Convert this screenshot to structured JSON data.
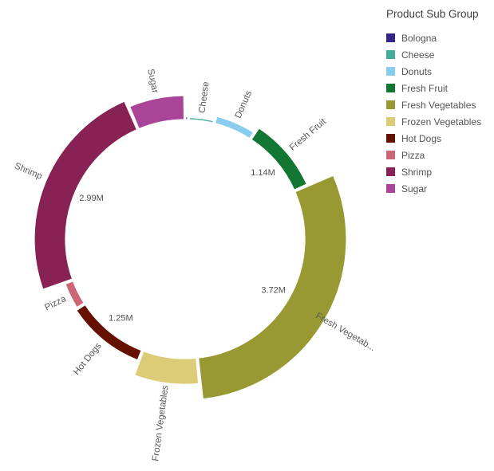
{
  "legend": {
    "title": "Product Sub Group"
  },
  "chart_data": {
    "type": "pie",
    "subtype": "variable-radius-donut",
    "title": "",
    "legend_position": "top-right",
    "unit": "M",
    "slices": [
      {
        "label": "Bologna",
        "color": "#332288",
        "value": 0.05,
        "radius": 0.06,
        "outer_label": null,
        "value_label": null
      },
      {
        "label": "Cheese",
        "color": "#44AA99",
        "value": 0.43,
        "radius": 0.05,
        "outer_label": "Cheese",
        "value_label": null
      },
      {
        "label": "Donuts",
        "color": "#88CCEE",
        "value": 0.66,
        "radius": 0.17,
        "outer_label": "Donuts",
        "value_label": null
      },
      {
        "label": "Fresh Fruit",
        "color": "#117733",
        "value": 1.14,
        "radius": 0.33,
        "outer_label": "Fresh Fruit",
        "value_label": "1.14M"
      },
      {
        "label": "Fresh Vegetables",
        "color": "#999933",
        "value": 3.72,
        "radius": 1.0,
        "outer_label": "Fresh Vegetab...",
        "value_label": "3.72M"
      },
      {
        "label": "Frozen Vegetables",
        "color": "#DDCC77",
        "value": 0.92,
        "radius": 0.62,
        "outer_label": "Frozen Vegetables",
        "value_label": null
      },
      {
        "label": "Hot Dogs",
        "color": "#661100",
        "value": 1.25,
        "radius": 0.25,
        "outer_label": "Hot Dogs",
        "value_label": "1.25M"
      },
      {
        "label": "Pizza",
        "color": "#CC6677",
        "value": 0.44,
        "radius": 0.2,
        "outer_label": "Pizza",
        "value_label": null
      },
      {
        "label": "Shrimp",
        "color": "#882255",
        "value": 2.99,
        "radius": 0.75,
        "outer_label": "Shrimp",
        "value_label": "2.99M"
      },
      {
        "label": "Sugar",
        "color": "#AA4499",
        "value": 0.8,
        "radius": 0.58,
        "outer_label": "Sugar",
        "value_label": null
      }
    ]
  }
}
